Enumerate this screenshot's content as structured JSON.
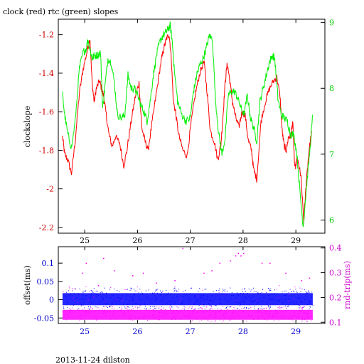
{
  "footer_text": "2013-11-24 dilston",
  "chart_data": [
    {
      "type": "line",
      "title": "clock (red) rtc (green) slopes",
      "xlabel": "",
      "ylabel": "clockslope",
      "xlim": [
        24.5,
        29.55
      ],
      "ylim": [
        -2.23,
        -1.12
      ],
      "y2lim": [
        5.8,
        9.05
      ],
      "x_ticks": [
        25,
        26,
        27,
        28,
        29
      ],
      "y_ticks": [
        -2.2,
        -2,
        -1.8,
        -1.6,
        -1.4,
        -1.2
      ],
      "y2_ticks": [
        6,
        7,
        8,
        9
      ],
      "x_tick_labels": [
        "25",
        "26",
        "27",
        "28",
        "29"
      ],
      "y_tick_labels": [
        "-2.2",
        "-2",
        "-1.8",
        "-1.6",
        "-1.4",
        "-1.2"
      ],
      "y2_tick_labels": [
        "6",
        "7",
        "8",
        "9"
      ],
      "colors": {
        "clock": "#ff0000",
        "rtc": "#00ee00",
        "left_axis": "#cc0000",
        "right_axis": "#00cc00",
        "frame": "#000000"
      },
      "series": [
        {
          "axis": "left",
          "color": "#ff0000",
          "x": [
            24.58,
            24.62,
            24.68,
            24.75,
            24.82,
            24.9,
            24.97,
            25.05,
            25.1,
            25.14,
            25.18,
            25.22,
            25.28,
            25.32,
            25.36,
            25.4,
            25.46,
            25.52,
            25.58,
            25.66,
            25.74,
            25.8,
            25.88,
            25.96,
            26.03,
            26.08,
            26.14,
            26.2,
            26.28,
            26.36,
            26.44,
            26.5,
            26.55,
            26.6,
            26.64,
            26.68,
            26.72,
            26.78,
            26.86,
            26.94,
            27.02,
            27.1,
            27.18,
            27.26,
            27.32,
            27.38,
            27.45,
            27.52,
            27.58,
            27.62,
            27.66,
            27.7,
            27.74,
            27.8,
            27.86,
            27.92,
            27.98,
            28.04,
            28.1,
            28.16,
            28.2,
            28.26,
            28.34,
            28.42,
            28.5,
            28.58,
            28.64,
            28.7,
            28.74,
            28.78,
            28.82,
            28.86,
            28.9,
            28.94,
            28.98,
            29.02,
            29.06,
            29.1,
            29.15,
            29.2,
            29.25,
            29.3
          ],
          "y": [
            -1.73,
            -1.82,
            -1.85,
            -1.92,
            -1.75,
            -1.5,
            -1.38,
            -1.28,
            -1.22,
            -1.45,
            -1.55,
            -1.48,
            -1.44,
            -1.48,
            -1.52,
            -1.6,
            -1.72,
            -1.78,
            -1.73,
            -1.76,
            -1.88,
            -1.8,
            -1.65,
            -1.52,
            -1.45,
            -1.68,
            -1.75,
            -1.8,
            -1.65,
            -1.5,
            -1.35,
            -1.27,
            -1.22,
            -1.2,
            -1.32,
            -1.55,
            -1.6,
            -1.72,
            -1.8,
            -1.83,
            -1.65,
            -1.5,
            -1.4,
            -1.34,
            -1.5,
            -1.7,
            -1.75,
            -1.85,
            -1.77,
            -1.62,
            -1.45,
            -1.35,
            -1.42,
            -1.55,
            -1.63,
            -1.68,
            -1.6,
            -1.62,
            -1.75,
            -1.8,
            -1.9,
            -1.95,
            -1.65,
            -1.55,
            -1.48,
            -1.44,
            -1.42,
            -1.52,
            -1.7,
            -1.78,
            -1.8,
            -1.73,
            -1.73,
            -1.65,
            -1.9,
            -1.85,
            -1.88,
            -1.95,
            -2.17,
            -1.95,
            -1.8,
            -1.7
          ]
        },
        {
          "axis": "right",
          "color": "#00ee00",
          "x": [
            24.58,
            24.62,
            24.68,
            24.75,
            24.82,
            24.9,
            24.97,
            25.03,
            25.06,
            25.1,
            25.14,
            25.18,
            25.24,
            25.3,
            25.34,
            25.38,
            25.44,
            25.5,
            25.56,
            25.62,
            25.7,
            25.76,
            25.82,
            25.88,
            25.94,
            26.0,
            26.06,
            26.12,
            26.18,
            26.24,
            26.3,
            26.36,
            26.42,
            26.48,
            26.54,
            26.58,
            26.62,
            26.66,
            26.7,
            26.76,
            26.84,
            26.92,
            27.0,
            27.06,
            27.12,
            27.18,
            27.24,
            27.3,
            27.36,
            27.42,
            27.48,
            27.54,
            27.6,
            27.66,
            27.72,
            27.78,
            27.84,
            27.9,
            27.96,
            28.02,
            28.08,
            28.14,
            28.2,
            28.26,
            28.32,
            28.38,
            28.44,
            28.5,
            28.56,
            28.6,
            28.66,
            28.72,
            28.78,
            28.84,
            28.9,
            28.96,
            29.02,
            29.08,
            29.14,
            29.2,
            29.26,
            29.32
          ],
          "y": [
            7.9,
            7.6,
            7.3,
            7.1,
            7.5,
            8.3,
            8.55,
            8.6,
            8.75,
            8.6,
            8.45,
            8.5,
            8.5,
            8.55,
            7.7,
            8.0,
            8.45,
            8.4,
            8.1,
            7.6,
            7.55,
            7.6,
            8.2,
            8.0,
            8.0,
            7.9,
            7.75,
            7.65,
            7.5,
            7.8,
            8.2,
            8.5,
            8.7,
            8.8,
            8.85,
            8.9,
            8.95,
            8.7,
            8.25,
            7.8,
            7.6,
            7.5,
            7.55,
            7.95,
            8.2,
            8.35,
            8.45,
            8.6,
            8.8,
            8.75,
            7.8,
            7.3,
            7.0,
            7.25,
            7.9,
            7.95,
            7.95,
            7.85,
            7.7,
            7.6,
            7.9,
            7.55,
            7.4,
            7.2,
            7.8,
            8.0,
            8.2,
            8.4,
            8.5,
            8.45,
            7.85,
            7.6,
            7.55,
            7.5,
            7.3,
            7.3,
            7.0,
            6.4,
            5.9,
            6.5,
            7.0,
            7.6
          ]
        }
      ]
    },
    {
      "type": "scatter",
      "title": "",
      "xlabel": "",
      "ylabel": "offset(ms)",
      "y2label": "rnd-trip(ms)",
      "xlim": [
        24.5,
        29.55
      ],
      "ylim": [
        -0.065,
        0.145
      ],
      "y2lim": [
        0.095,
        0.405
      ],
      "x_ticks": [
        25,
        26,
        27,
        28,
        29
      ],
      "y_ticks": [
        -0.05,
        0,
        0.05,
        0.1
      ],
      "y2_ticks": [
        0.1,
        0.2,
        0.3,
        0.4
      ],
      "x_tick_labels": [
        "25",
        "26",
        "27",
        "28",
        "29"
      ],
      "y_tick_labels": [
        "-0.05",
        "0",
        "0.05",
        "0.1"
      ],
      "y2_tick_labels": [
        "0.1",
        "0.2",
        "0.3",
        "0.4"
      ],
      "colors": {
        "offset": "#0000ff",
        "rndtrip": "#ff00ff",
        "left_axis": "#0000cc",
        "right_axis": "#cc00cc",
        "frame": "#000000"
      },
      "x_range_data": [
        24.58,
        29.32
      ],
      "offset_band": [
        -0.015,
        0.018
      ],
      "rndtrip_band": [
        0.11,
        0.15
      ],
      "rndtrip_outliers": {
        "x": [
          24.95,
          25.02,
          25.25,
          25.35,
          25.55,
          25.9,
          26.1,
          26.35,
          26.7,
          26.85,
          27.25,
          27.4,
          27.55,
          27.75,
          27.85,
          27.9,
          27.95,
          28.0,
          28.35,
          28.5,
          28.8,
          29.1,
          29.25
        ],
        "y": [
          0.3,
          0.34,
          0.25,
          0.36,
          0.31,
          0.29,
          0.3,
          0.26,
          0.27,
          0.4,
          0.3,
          0.31,
          0.34,
          0.35,
          0.37,
          0.38,
          0.37,
          0.38,
          0.34,
          0.34,
          0.3,
          0.27,
          0.28
        ]
      }
    }
  ]
}
